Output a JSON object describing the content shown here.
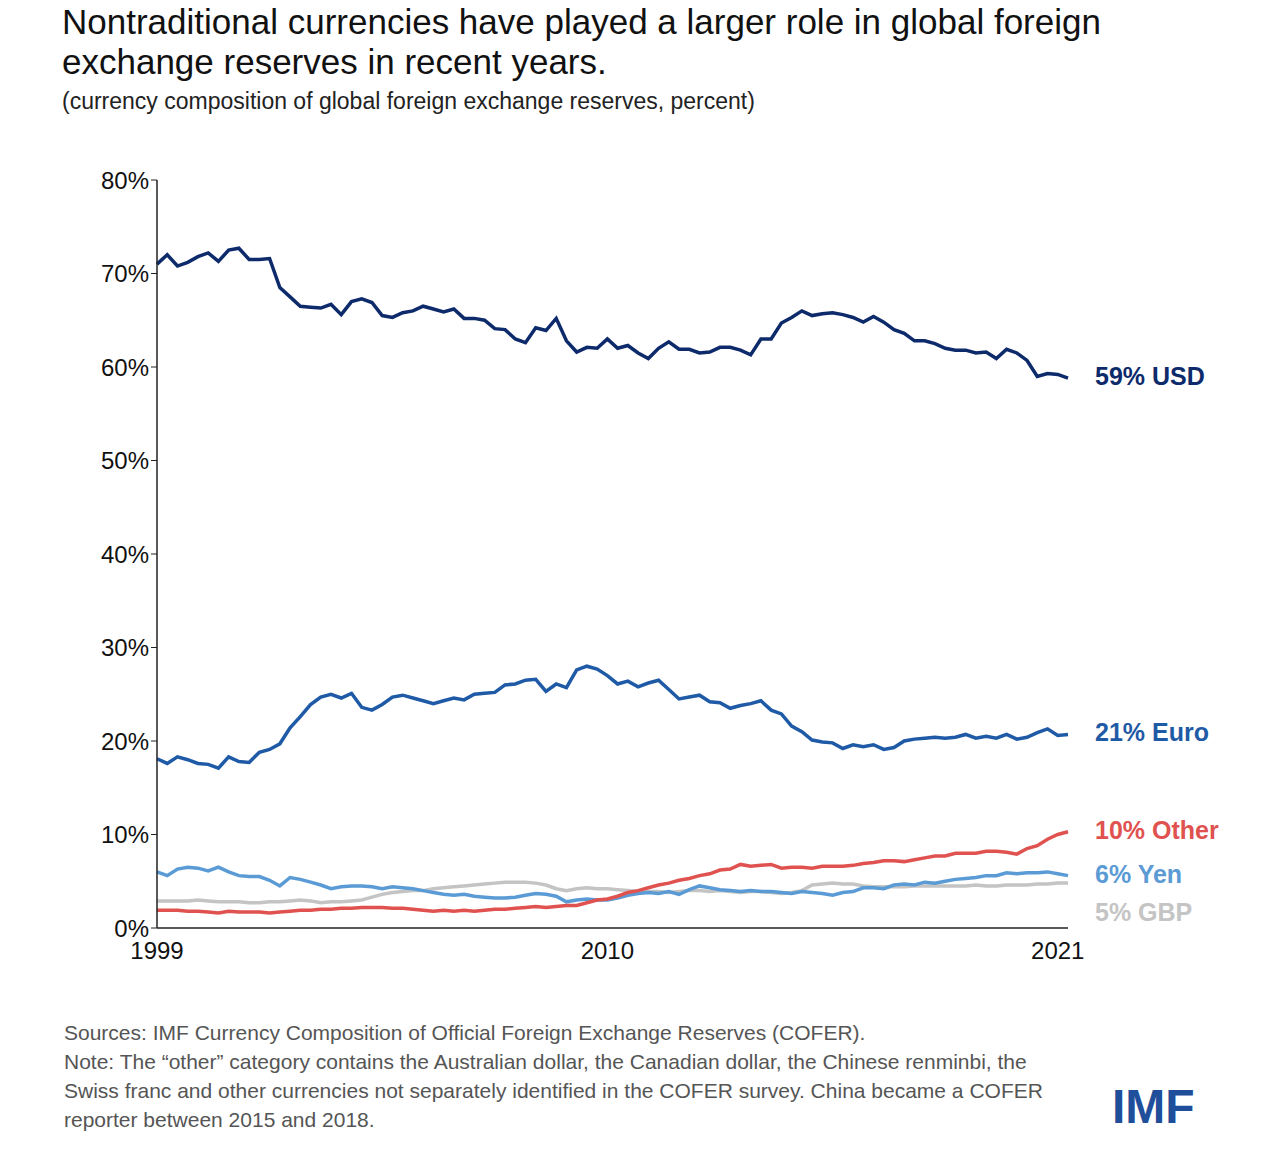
{
  "chart_data": {
    "type": "line",
    "title": "Nontraditional currencies have played a larger role in global foreign exchange reserves in recent years.",
    "subtitle": "(currency composition of global foreign exchange reserves, percent)",
    "source": "Sources: IMF Currency Composition of Official Foreign Exchange Reserves (COFER).",
    "note": "Note: The “other” category contains the Australian dollar, the Canadian dollar, the Chinese renminbi, the Swiss franc and other currencies not separately identified in the COFER survey. China became a COFER reporter between 2015 and 2018.",
    "logo": "IMF",
    "categories": [
      "1999",
      null,
      null,
      null,
      null,
      null,
      null,
      null,
      null,
      null,
      null,
      null,
      null,
      null,
      null,
      null,
      null,
      null,
      null,
      null,
      null,
      null,
      null,
      null,
      null,
      null,
      null,
      null,
      null,
      null,
      null,
      null,
      null,
      null,
      null,
      null,
      null,
      null,
      null,
      null,
      null,
      null,
      null,
      null,
      "2010",
      null,
      null,
      null,
      null,
      null,
      null,
      null,
      null,
      null,
      null,
      null,
      null,
      null,
      null,
      null,
      null,
      null,
      null,
      null,
      null,
      null,
      null,
      null,
      null,
      null,
      null,
      null,
      null,
      null,
      null,
      null,
      null,
      null,
      null,
      null,
      null,
      null,
      null,
      null,
      null,
      null,
      null,
      null,
      "2021",
      null
    ],
    "series": [
      {
        "name": "5% GBP",
        "color": "#c4c4c4",
        "values": [
          2.9,
          2.9,
          2.9,
          2.9,
          3.0,
          2.9,
          2.8,
          2.8,
          2.8,
          2.7,
          2.7,
          2.8,
          2.8,
          2.9,
          3.0,
          2.9,
          2.7,
          2.8,
          2.8,
          2.9,
          3.0,
          3.3,
          3.6,
          3.8,
          3.9,
          4.0,
          4.0,
          4.2,
          4.3,
          4.4,
          4.5,
          4.6,
          4.7,
          4.8,
          4.9,
          4.9,
          4.9,
          4.8,
          4.6,
          4.2,
          4.0,
          4.2,
          4.3,
          4.2,
          4.2,
          4.1,
          4.0,
          3.9,
          3.9,
          3.9,
          3.8,
          3.9,
          4.0,
          4.0,
          3.9,
          4.0,
          3.9,
          3.8,
          3.9,
          3.9,
          3.8,
          3.7,
          3.8,
          4.0,
          4.6,
          4.7,
          4.8,
          4.7,
          4.7,
          4.5,
          4.4,
          4.4,
          4.4,
          4.4,
          4.5,
          4.5,
          4.5,
          4.5,
          4.5,
          4.5,
          4.6,
          4.5,
          4.5,
          4.6,
          4.6,
          4.6,
          4.7,
          4.7,
          4.8,
          4.8
        ]
      },
      {
        "name": "6% Yen",
        "color": "#5b9bd5",
        "values": [
          6.0,
          5.6,
          6.3,
          6.5,
          6.4,
          6.1,
          6.5,
          6.0,
          5.6,
          5.5,
          5.5,
          5.1,
          4.5,
          5.4,
          5.2,
          4.9,
          4.6,
          4.2,
          4.4,
          4.5,
          4.5,
          4.4,
          4.2,
          4.4,
          4.3,
          4.2,
          4.0,
          3.8,
          3.6,
          3.5,
          3.6,
          3.4,
          3.3,
          3.2,
          3.2,
          3.3,
          3.5,
          3.7,
          3.6,
          3.4,
          2.8,
          3.0,
          3.1,
          3.0,
          3.0,
          3.2,
          3.5,
          3.7,
          3.8,
          3.7,
          3.9,
          3.6,
          4.1,
          4.5,
          4.3,
          4.1,
          4.0,
          3.9,
          4.0,
          3.9,
          3.9,
          3.8,
          3.7,
          3.9,
          3.8,
          3.7,
          3.5,
          3.8,
          3.9,
          4.3,
          4.3,
          4.2,
          4.6,
          4.7,
          4.6,
          4.9,
          4.8,
          5.0,
          5.2,
          5.3,
          5.4,
          5.6,
          5.6,
          5.9,
          5.8,
          5.9,
          5.9,
          6.0,
          5.8,
          5.6
        ]
      },
      {
        "name": "10% Other",
        "color": "#e0524f",
        "values": [
          1.9,
          1.9,
          1.9,
          1.8,
          1.8,
          1.7,
          1.6,
          1.8,
          1.7,
          1.7,
          1.7,
          1.6,
          1.7,
          1.8,
          1.9,
          1.9,
          2.0,
          2.0,
          2.1,
          2.1,
          2.2,
          2.2,
          2.2,
          2.1,
          2.1,
          2.0,
          1.9,
          1.8,
          1.9,
          1.8,
          1.9,
          1.8,
          1.9,
          2.0,
          2.0,
          2.1,
          2.2,
          2.3,
          2.2,
          2.3,
          2.4,
          2.4,
          2.7,
          3.0,
          3.1,
          3.4,
          3.8,
          4.0,
          4.3,
          4.6,
          4.8,
          5.1,
          5.3,
          5.6,
          5.8,
          6.2,
          6.3,
          6.8,
          6.6,
          6.7,
          6.8,
          6.4,
          6.5,
          6.5,
          6.4,
          6.6,
          6.6,
          6.6,
          6.7,
          6.9,
          7.0,
          7.2,
          7.2,
          7.1,
          7.3,
          7.5,
          7.7,
          7.7,
          8.0,
          8.0,
          8.0,
          8.2,
          8.2,
          8.1,
          7.9,
          8.5,
          8.8,
          9.5,
          10.0,
          10.3
        ]
      },
      {
        "name": "21% Euro",
        "color": "#1f5aa6",
        "values": [
          18.1,
          17.6,
          18.3,
          18.0,
          17.6,
          17.5,
          17.1,
          18.3,
          17.8,
          17.7,
          18.8,
          19.1,
          19.7,
          21.4,
          22.6,
          23.9,
          24.7,
          25.0,
          24.6,
          25.1,
          23.6,
          23.3,
          23.9,
          24.7,
          24.9,
          24.6,
          24.3,
          24.0,
          24.3,
          24.6,
          24.4,
          25.0,
          25.1,
          25.2,
          26.0,
          26.1,
          26.5,
          26.6,
          25.3,
          26.1,
          25.7,
          27.6,
          28.0,
          27.7,
          27.0,
          26.1,
          26.4,
          25.8,
          26.2,
          26.5,
          25.5,
          24.5,
          24.7,
          24.9,
          24.2,
          24.1,
          23.5,
          23.8,
          24.0,
          24.3,
          23.3,
          22.9,
          21.6,
          21.0,
          20.1,
          19.9,
          19.8,
          19.2,
          19.6,
          19.4,
          19.6,
          19.1,
          19.3,
          20.0,
          20.2,
          20.3,
          20.4,
          20.3,
          20.4,
          20.7,
          20.3,
          20.5,
          20.3,
          20.7,
          20.2,
          20.4,
          20.9,
          21.3,
          20.6,
          20.7
        ]
      },
      {
        "name": "59% USD",
        "color": "#0d2a6b",
        "values": [
          71.0,
          72.0,
          70.8,
          71.2,
          71.8,
          72.2,
          71.3,
          72.5,
          72.7,
          71.5,
          71.5,
          71.6,
          68.5,
          67.5,
          66.5,
          66.4,
          66.3,
          66.7,
          65.6,
          67.0,
          67.3,
          66.9,
          65.5,
          65.3,
          65.8,
          66.0,
          66.5,
          66.2,
          65.9,
          66.2,
          65.2,
          65.2,
          65.0,
          64.1,
          64.0,
          63.0,
          62.6,
          64.2,
          63.9,
          65.2,
          62.8,
          61.6,
          62.1,
          62.0,
          63.0,
          62.0,
          62.3,
          61.5,
          60.9,
          62.0,
          62.7,
          61.9,
          61.9,
          61.5,
          61.6,
          62.1,
          62.1,
          61.8,
          61.3,
          63.0,
          63.0,
          64.7,
          65.3,
          66.0,
          65.5,
          65.7,
          65.8,
          65.6,
          65.3,
          64.8,
          65.4,
          64.8,
          64.0,
          63.6,
          62.8,
          62.8,
          62.5,
          62.0,
          61.8,
          61.8,
          61.5,
          61.6,
          60.9,
          61.9,
          61.5,
          60.7,
          59.0,
          59.3,
          59.2,
          58.8
        ]
      }
    ],
    "ylim": [
      0,
      80
    ],
    "yticks": [
      {
        "value": 0,
        "label": "0%"
      },
      {
        "value": 10,
        "label": "10%"
      },
      {
        "value": 20,
        "label": "20%"
      },
      {
        "value": 30,
        "label": "30%"
      },
      {
        "value": 40,
        "label": "40%"
      },
      {
        "value": 50,
        "label": "50%"
      },
      {
        "value": 60,
        "label": "60%"
      },
      {
        "value": 70,
        "label": "70%"
      },
      {
        "value": 80,
        "label": "80%"
      }
    ],
    "grid": false
  }
}
